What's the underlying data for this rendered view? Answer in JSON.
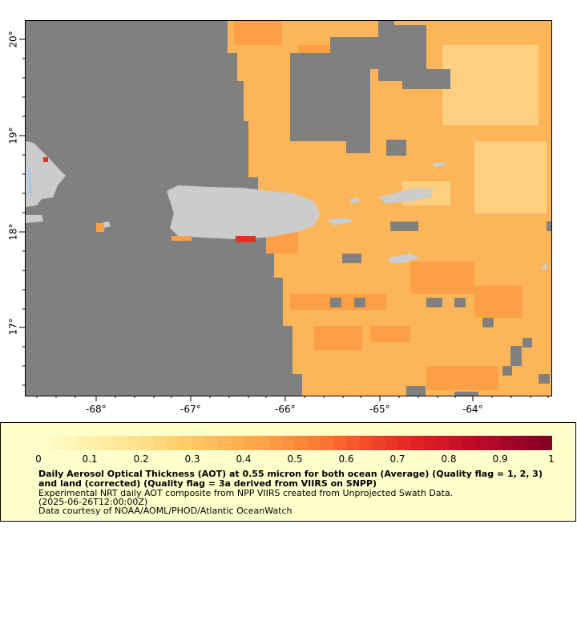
{
  "map": {
    "lon_ticks": [
      "-68°",
      "-67°",
      "-66°",
      "-65°",
      "-64°"
    ],
    "lat_ticks": [
      "20°",
      "19°",
      "18°",
      "17°"
    ],
    "colors": {
      "no_data": "#808080",
      "land": "#cccccc",
      "water": "#a0c8f0",
      "aot_low": "#fdbf6f",
      "aot_mid": "#fd9f45",
      "aot_high": "#e03020"
    }
  },
  "legend": {
    "colorbar_labels": [
      "0",
      "0.1",
      "0.2",
      "0.3",
      "0.4",
      "0.5",
      "0.6",
      "0.7",
      "0.8",
      "0.9",
      "1"
    ],
    "title": "Daily Aerosol Optical Thickness (AOT) at 0.55 micron for both ocean (Average) (Quality flag = 1, 2, 3) and land (corrected) (Quality flag = 3a derived from VIIRS on SNPP)",
    "line1": "Experimental NRT daily AOT composite from NPP VIIRS created from Unprojected Swath Data.",
    "line2": "(2025-06-26T12:00:00Z)",
    "line3": "Data courtesy of NOAA/AOML/PHOD/Atlantic OceanWatch"
  }
}
